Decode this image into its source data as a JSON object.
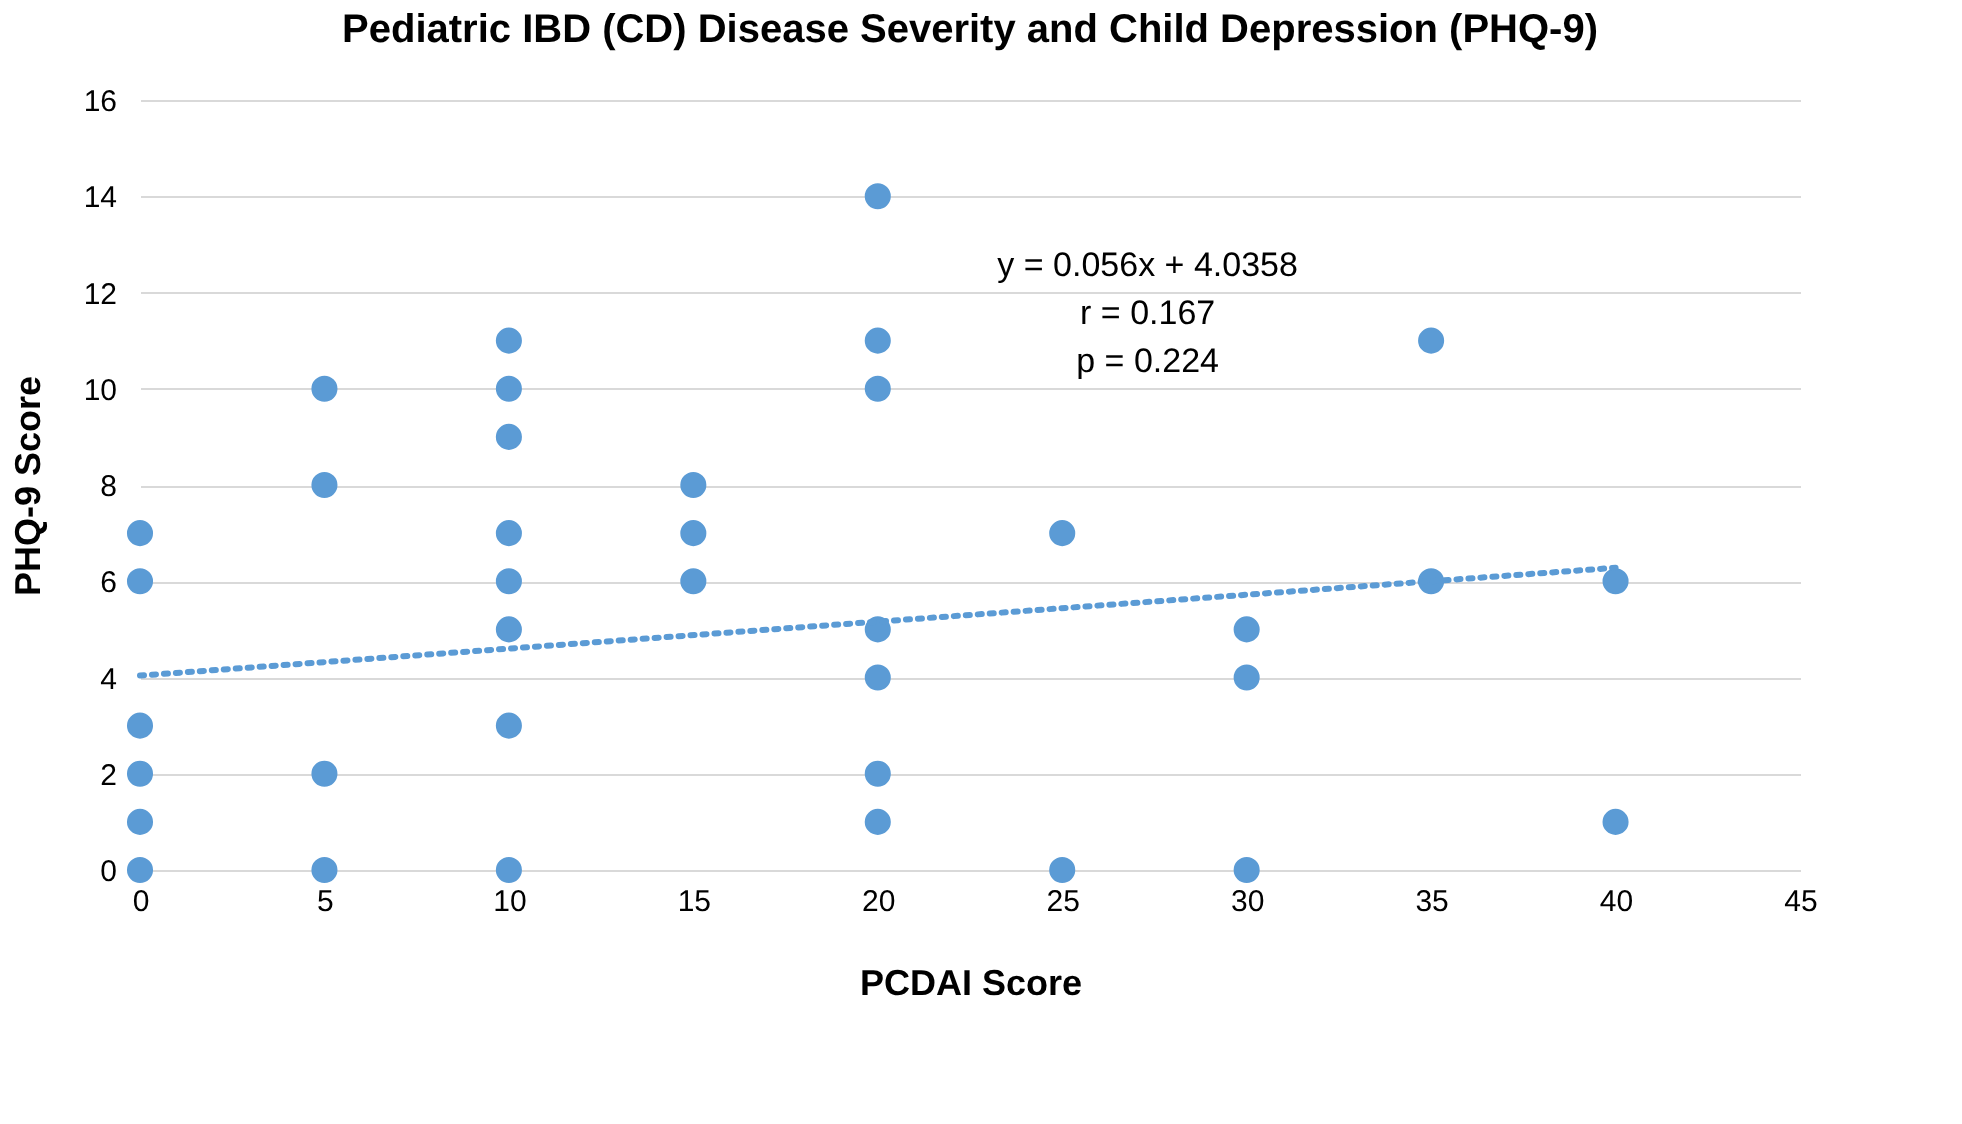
{
  "chart_data": {
    "type": "scatter",
    "title": "Pediatric IBD (CD) Disease Severity and Child Depression (PHQ-9)",
    "xlabel": "PCDAI Score",
    "ylabel": "PHQ-9 Score",
    "series": [
      {
        "color": "#5b9bd5",
        "marker": "circle",
        "x": [
          0,
          0,
          0,
          0,
          0,
          0,
          5,
          5,
          5,
          5,
          10,
          10,
          10,
          10,
          10,
          10,
          10,
          10,
          15,
          15,
          15,
          20,
          20,
          20,
          20,
          20,
          20,
          20,
          25,
          25,
          30,
          30,
          30,
          35,
          35,
          40,
          40
        ],
        "values": [
          7,
          6,
          3,
          2,
          1,
          0,
          10,
          8,
          2,
          0,
          11,
          10,
          9,
          7,
          6,
          5,
          3,
          0,
          8,
          7,
          6,
          14,
          11,
          10,
          5,
          4,
          2,
          1,
          7,
          0,
          5,
          4,
          0,
          11,
          6,
          6,
          1
        ]
      },
      {
        "type": "line",
        "color": "#5b9bd5",
        "line_style": "dotted",
        "marker": "none",
        "x": [
          0,
          40
        ],
        "values": [
          4.04,
          6.28
        ]
      }
    ],
    "annotations": [
      "y = 0.056x + 4.0358",
      "r = 0.167",
      "p = 0.224"
    ],
    "xlim": [
      0,
      45
    ],
    "xticks": [
      0,
      5,
      10,
      15,
      20,
      25,
      30,
      35,
      40,
      45
    ],
    "ylim": [
      0,
      16
    ],
    "yticks": [
      0,
      2,
      4,
      6,
      8,
      10,
      12,
      14,
      16
    ],
    "grid": "y"
  }
}
